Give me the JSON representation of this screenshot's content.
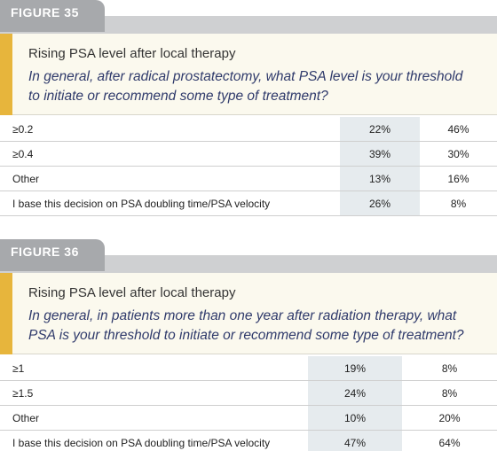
{
  "figures": [
    {
      "label": "FIGURE 35",
      "title": "Rising PSA level after local therapy",
      "question": [
        "In general, after radical prostatectomy, what PSA level is your threshold",
        "to initiate or recommend some type of treatment?"
      ],
      "rows": [
        [
          "≥0.2",
          "22%",
          "46%"
        ],
        [
          "≥0.4",
          "39%",
          "30%"
        ],
        [
          "Other",
          "13%",
          "16%"
        ],
        [
          "I base this decision on PSA doubling time/PSA velocity",
          "26%",
          "8%"
        ]
      ]
    },
    {
      "label": "FIGURE 36",
      "title": "Rising PSA level after local therapy",
      "question": [
        "In general, in patients more than one year after radiation therapy, what",
        "PSA is your threshold to initiate or recommend some type of treatment?"
      ],
      "rows": [
        [
          "≥1",
          "19%",
          "8%"
        ],
        [
          "≥1.5",
          "24%",
          "8%"
        ],
        [
          "Other",
          "10%",
          "20%"
        ],
        [
          "I base this decision on PSA doubling time/PSA velocity",
          "47%",
          "64%"
        ]
      ]
    }
  ]
}
